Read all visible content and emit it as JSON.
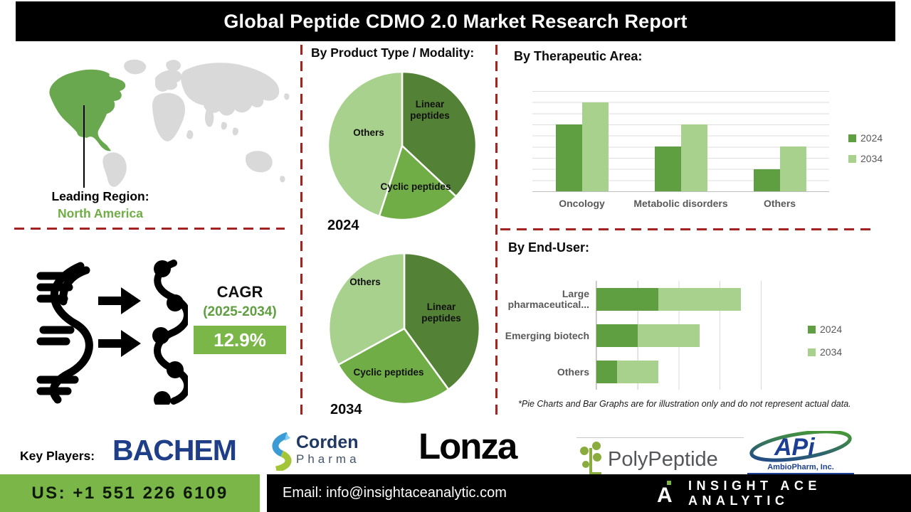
{
  "title": "Global Peptide CDMO 2.0 Market Research Report",
  "map_section": {
    "leading_region_label": "Leading Region:",
    "leading_region_value": "North America"
  },
  "cagr": {
    "label": "CAGR",
    "period": "(2025-2034)",
    "value": "12.9%"
  },
  "chart_data": [
    {
      "type": "pie",
      "title": "By Product Type / Modality:",
      "year": "2024",
      "labels": [
        "Linear peptides",
        "Cyclic peptides",
        "Others"
      ],
      "values": [
        37,
        18,
        45
      ],
      "colors": [
        "#538135",
        "#70ad47",
        "#a9d18e"
      ],
      "note": "illustrative only"
    },
    {
      "type": "pie",
      "title": "By Product Type / Modality:",
      "year": "2034",
      "labels": [
        "Linear peptides",
        "Cyclic peptides",
        "Others"
      ],
      "values": [
        40,
        27,
        33
      ],
      "colors": [
        "#538135",
        "#70ad47",
        "#a9d18e"
      ],
      "note": "illustrative only"
    },
    {
      "type": "bar",
      "title": "By Therapeutic Area:",
      "categories": [
        "Oncology",
        "Metabolic disorders",
        "Others"
      ],
      "series": [
        {
          "name": "2024",
          "values": [
            6,
            4,
            2
          ]
        },
        {
          "name": "2034",
          "values": [
            8,
            6,
            4
          ]
        }
      ],
      "colors": [
        "#5f9e41",
        "#a9d18e"
      ],
      "ylim": [
        0,
        9
      ],
      "grid": true,
      "legend_position": "right",
      "note": "illustrative only, no value axis labels shown"
    },
    {
      "type": "stacked-bar-horizontal",
      "title": "By End-User:",
      "categories": [
        "Large pharmaceutical...",
        "Emerging biotech",
        "Others"
      ],
      "series": [
        {
          "name": "2024",
          "values": [
            1.5,
            1.0,
            0.5
          ]
        },
        {
          "name": "2034",
          "values": [
            2.0,
            1.5,
            1.0
          ]
        }
      ],
      "colors": [
        "#5f9e41",
        "#a9d18e"
      ],
      "xlim": [
        0,
        4
      ],
      "grid": true,
      "legend_position": "right",
      "note": "illustrative only, no value axis labels shown"
    }
  ],
  "disclaimer": "*Pie Charts and Bar Graphs are for illustration only and do not represent actual data.",
  "key_players": {
    "label": "Key Players:",
    "bachem": "BACHEM",
    "corden_line1": "Corden",
    "corden_line2": "Pharma",
    "lonza": "Lonza",
    "polypeptide": "PolyPeptide",
    "api_main": "APi",
    "api_sub": "AmbioPharm, Inc."
  },
  "footer": {
    "phone": "US: +1 551 226 6109",
    "email": "Email: info@insightaceanalytic.com",
    "brand": "INSIGHT ACE ANALYTIC"
  },
  "icons": {
    "dna": "dna-helix-icon",
    "arrows": "transform-arrows-icon",
    "peptide": "peptide-chain-icon",
    "map": "world-map-graphic",
    "brand_mark": "insight-ace-logo-mark"
  },
  "colors": {
    "pie_dark_green": "#538135",
    "pie_mid_green": "#70ad47",
    "pie_light_green": "#a9d18e",
    "series_2024": "#5f9e41",
    "series_2034": "#a9d18e",
    "dashed_divider_red": "#a32222",
    "footer_green": "#7ab648",
    "accent_green_text": "#70ad47",
    "title_bar_black": "#000000"
  }
}
